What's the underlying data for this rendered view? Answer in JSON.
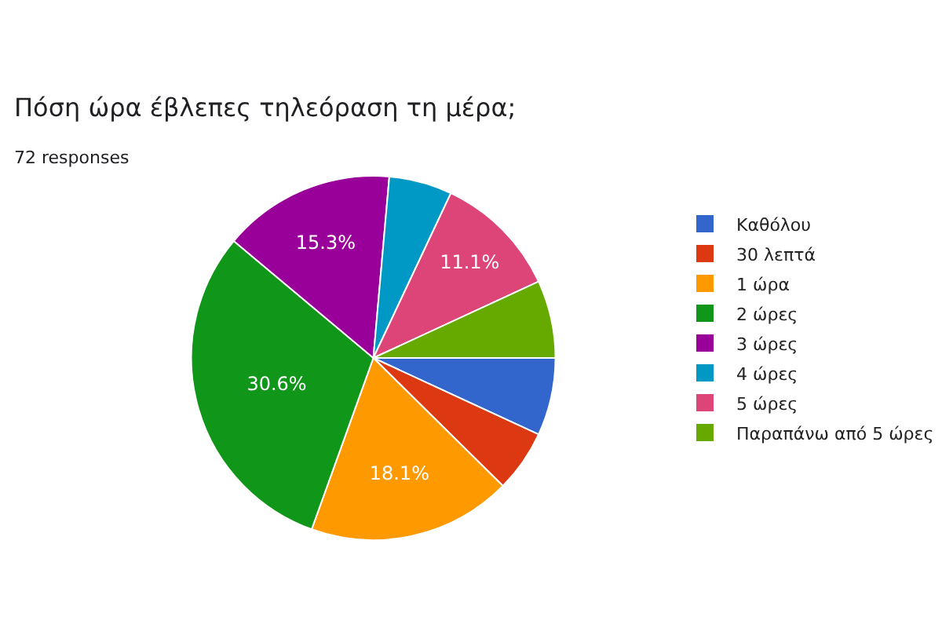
{
  "chart_data": {
    "type": "pie",
    "title": "Πόση ώρα έβλεπες τηλεόραση τη μέρα;",
    "subtitle": "72 responses",
    "categories": [
      "Καθόλου",
      "30 λεπτά",
      "1 ώρα",
      "2 ώρες",
      "3 ώρες",
      "4 ώρες",
      "5 ώρες",
      "Παραπάνω από 5 ώρες"
    ],
    "values": [
      6.9,
      5.5,
      18.1,
      30.6,
      15.3,
      5.6,
      11.1,
      6.9
    ],
    "colors": [
      "#3366cc",
      "#dc3912",
      "#ff9900",
      "#109618",
      "#990099",
      "#0099c6",
      "#dd4477",
      "#66aa00"
    ],
    "value_labels": [
      null,
      null,
      "18.1%",
      "30.6%",
      "15.3%",
      null,
      "11.1%",
      null
    ],
    "legend": "right"
  }
}
